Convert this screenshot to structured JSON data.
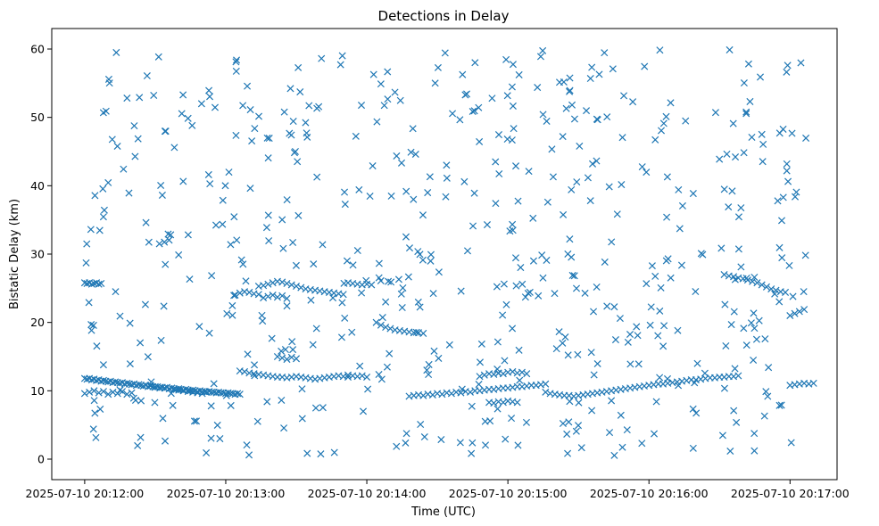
{
  "chart_data": {
    "type": "scatter",
    "title": "Detections in Delay",
    "xlabel": "Time (UTC)",
    "ylabel": "Bistatic Delay (km)",
    "x_unit": "seconds after 2025-07-10 20:12:00 UTC",
    "xlim": [
      -14,
      320
    ],
    "ylim": [
      -3,
      63
    ],
    "x_ticks": [
      {
        "value": 0,
        "label": "2025-07-10 20:12:00"
      },
      {
        "value": 60,
        "label": "2025-07-10 20:13:00"
      },
      {
        "value": 120,
        "label": "2025-07-10 20:14:00"
      },
      {
        "value": 180,
        "label": "2025-07-10 20:15:00"
      },
      {
        "value": 240,
        "label": "2025-07-10 20:16:00"
      },
      {
        "value": 300,
        "label": "2025-07-10 20:17:00"
      }
    ],
    "y_ticks": [
      0,
      10,
      20,
      30,
      40,
      50,
      60
    ],
    "grid": false,
    "marker": "x",
    "color": "#1f77b4",
    "tracks": [
      {
        "x": [
          0,
          1,
          2,
          3,
          4,
          5,
          6,
          7
        ],
        "y": [
          25.8,
          25.7,
          25.8,
          25.6,
          25.7,
          25.8,
          25.6,
          25.7
        ]
      },
      {
        "x": [
          0,
          1,
          2,
          3,
          4,
          5,
          6,
          7,
          8,
          9,
          10,
          11,
          12,
          13,
          14,
          15,
          16,
          17,
          18,
          19,
          20,
          21,
          22,
          23,
          24,
          25,
          26,
          27,
          28,
          29,
          30,
          31,
          32,
          33,
          34,
          35,
          36,
          37,
          38,
          39,
          40,
          41,
          42,
          43,
          44,
          45,
          46,
          47,
          48,
          49,
          50,
          51,
          52,
          53,
          54,
          55,
          56,
          57,
          58,
          59,
          60,
          61,
          62,
          63,
          64,
          65,
          66
        ],
        "y": [
          11.8,
          11.7,
          11.8,
          11.6,
          11.7,
          11.5,
          11.6,
          11.4,
          11.5,
          11.4,
          11.3,
          11.4,
          11.2,
          11.3,
          11.2,
          11.1,
          11.2,
          11.0,
          11.1,
          11.0,
          10.9,
          11.0,
          10.8,
          10.9,
          10.8,
          10.7,
          10.8,
          10.6,
          10.7,
          10.6,
          10.5,
          10.6,
          10.4,
          10.5,
          10.4,
          10.5,
          10.3,
          10.4,
          10.3,
          10.2,
          10.3,
          10.2,
          10.1,
          10.2,
          10.1,
          10.0,
          10.1,
          10.0,
          9.9,
          10.0,
          9.9,
          9.9,
          9.8,
          9.9,
          9.8,
          9.8,
          9.7,
          9.8,
          9.7,
          9.7,
          9.6,
          9.7,
          9.6,
          9.6,
          9.5,
          9.6,
          9.5
        ]
      },
      {
        "x": [
          0,
          2,
          4,
          6,
          8,
          10,
          12,
          14,
          16,
          18,
          20
        ],
        "y": [
          9.6,
          9.8,
          10.0,
          9.7,
          9.9,
          9.5,
          9.8,
          9.6,
          9.9,
          9.5,
          9.7
        ]
      },
      {
        "x": [
          28,
          30,
          32,
          34,
          36,
          38,
          40,
          42,
          44,
          46,
          48,
          50
        ],
        "y": [
          10.8,
          10.6,
          10.5,
          10.4,
          10.3,
          10.2,
          10.1,
          10.0,
          9.9,
          9.8,
          9.7,
          9.6
        ]
      },
      {
        "x": [
          66,
          68,
          70,
          72,
          74,
          76,
          78,
          80,
          82,
          84,
          86,
          88,
          90,
          92,
          94,
          96,
          98,
          100,
          102,
          104,
          106,
          108,
          110,
          112
        ],
        "y": [
          12.9,
          12.8,
          12.6,
          12.5,
          12.4,
          12.3,
          12.2,
          12.1,
          12.0,
          12.0,
          11.9,
          12.0,
          12.1,
          12.0,
          11.9,
          11.8,
          11.7,
          11.8,
          11.9,
          12.0,
          12.1,
          12.2,
          12.1,
          12.0
        ]
      },
      {
        "x": [
          74,
          76,
          78,
          80,
          82,
          84,
          86,
          88,
          90,
          92,
          94,
          96,
          98,
          100,
          102,
          104,
          106,
          108,
          110
        ],
        "y": [
          25.3,
          25.4,
          25.6,
          25.8,
          26.0,
          25.9,
          25.7,
          25.5,
          25.3,
          25.1,
          24.9,
          24.8,
          24.7,
          24.6,
          24.5,
          24.4,
          24.3,
          24.2,
          24.1
        ]
      },
      {
        "x": [
          76,
          78,
          80,
          82,
          84,
          86
        ],
        "y": [
          23.6,
          23.8,
          24.0,
          23.7,
          23.9,
          23.5
        ]
      },
      {
        "x": [
          64,
          66,
          68,
          70,
          72,
          74
        ],
        "y": [
          24.0,
          24.3,
          24.5,
          24.4,
          24.2,
          24.1
        ]
      },
      {
        "x": [
          82,
          84,
          86,
          88,
          90
        ],
        "y": [
          15.0,
          14.8,
          14.6,
          14.9,
          14.7
        ]
      },
      {
        "x": [
          112,
          114,
          116,
          118,
          120,
          122
        ],
        "y": [
          25.8,
          25.7,
          25.6,
          25.5,
          25.6,
          25.5
        ]
      },
      {
        "x": [
          112,
          114,
          116,
          118,
          120
        ],
        "y": [
          12.3,
          12.2,
          12.1,
          12.2,
          12.0
        ]
      },
      {
        "x": [
          124,
          126,
          128,
          130,
          132,
          134,
          136,
          138,
          140,
          142,
          144
        ],
        "y": [
          20.0,
          19.6,
          19.3,
          19.1,
          18.9,
          18.8,
          18.7,
          18.6,
          18.5,
          18.5,
          18.4
        ]
      },
      {
        "x": [
          138,
          140,
          142,
          144,
          146,
          148,
          150,
          152,
          154,
          156,
          158,
          160,
          162,
          164,
          166,
          168,
          170,
          172,
          174,
          176,
          178,
          180,
          182,
          184,
          186,
          188,
          190,
          192,
          194,
          196
        ],
        "y": [
          9.2,
          9.3,
          9.4,
          9.3,
          9.5,
          9.4,
          9.6,
          9.5,
          9.7,
          9.6,
          9.8,
          9.7,
          9.9,
          9.8,
          10.0,
          10.0,
          10.1,
          10.2,
          10.2,
          10.3,
          10.4,
          10.4,
          10.5,
          10.6,
          10.6,
          10.7,
          10.8,
          10.8,
          10.9,
          11.0
        ]
      },
      {
        "x": [
          168,
          170,
          172,
          174,
          176,
          178,
          180,
          182,
          184,
          186,
          188
        ],
        "y": [
          12.1,
          12.3,
          12.5,
          12.4,
          12.6,
          12.5,
          12.7,
          12.8,
          12.6,
          12.7,
          12.5
        ]
      },
      {
        "x": [
          172,
          174,
          176,
          178,
          180,
          182,
          184
        ],
        "y": [
          8.3,
          8.2,
          8.4,
          8.3,
          8.5,
          8.4,
          8.3
        ]
      },
      {
        "x": [
          196,
          198,
          200,
          202,
          204,
          206,
          208,
          210,
          212,
          214,
          216,
          218,
          220,
          222,
          224,
          226,
          228,
          230,
          232,
          234,
          236,
          238,
          240,
          242,
          244,
          246,
          248,
          250,
          252,
          254,
          256,
          258,
          260,
          262,
          264,
          266,
          268,
          270,
          272,
          274,
          276,
          278
        ],
        "y": [
          9.8,
          9.6,
          9.5,
          9.4,
          9.3,
          9.3,
          9.2,
          9.3,
          9.4,
          9.5,
          9.6,
          9.7,
          9.8,
          9.9,
          10.0,
          10.1,
          10.2,
          10.3,
          10.4,
          10.5,
          10.6,
          10.7,
          10.8,
          10.9,
          11.0,
          11.0,
          11.1,
          11.2,
          11.3,
          11.4,
          11.5,
          11.6,
          11.6,
          11.7,
          11.8,
          11.9,
          11.9,
          12.0,
          12.0,
          12.1,
          12.1,
          12.2
        ]
      },
      {
        "x": [
          272,
          274,
          276,
          278,
          280,
          282,
          284,
          286,
          288,
          290,
          292,
          294,
          296,
          298
        ],
        "y": [
          27.0,
          26.8,
          26.7,
          26.5,
          26.4,
          26.2,
          26.0,
          25.8,
          25.5,
          25.2,
          24.9,
          24.7,
          24.5,
          24.4
        ]
      },
      {
        "x": [
          300,
          302,
          304,
          306,
          308,
          310
        ],
        "y": [
          10.8,
          10.9,
          11.0,
          11.1,
          11.0,
          11.1
        ]
      },
      {
        "x": [
          300,
          302,
          304,
          306
        ],
        "y": [
          21.0,
          21.3,
          21.6,
          21.9
        ]
      }
    ],
    "noise": {
      "count": 560,
      "x_range": [
        0,
        308
      ],
      "y_range": [
        0.5,
        60
      ]
    }
  }
}
